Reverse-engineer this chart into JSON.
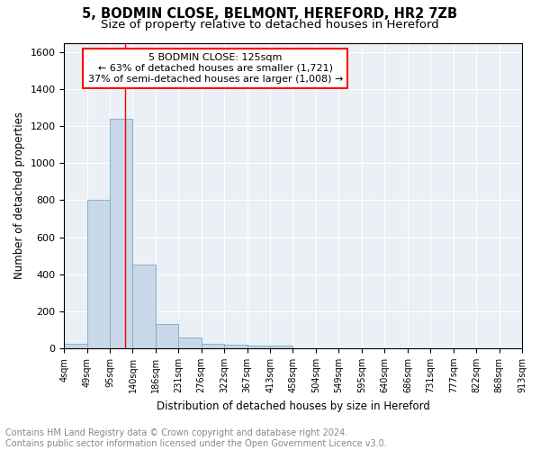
{
  "title": "5, BODMIN CLOSE, BELMONT, HEREFORD, HR2 7ZB",
  "subtitle": "Size of property relative to detached houses in Hereford",
  "xlabel": "Distribution of detached houses by size in Hereford",
  "ylabel": "Number of detached properties",
  "bar_color": "#c8d8e8",
  "bar_edge_color": "#7aaabb",
  "bg_color": "#eaf0f6",
  "grid_color": "white",
  "red_line_x": 125,
  "annotation_line1": "5 BODMIN CLOSE: 125sqm",
  "annotation_line2": "← 63% of detached houses are smaller (1,721)",
  "annotation_line3": "37% of semi-detached houses are larger (1,008) →",
  "annotation_box_color": "white",
  "annotation_box_edge": "red",
  "bins_left_edges": [
    4,
    49,
    95,
    140,
    186,
    231,
    276,
    322,
    367,
    413,
    458,
    504,
    549,
    595,
    640,
    686,
    731,
    777,
    822,
    868
  ],
  "bin_width": 45,
  "bar_heights": [
    25,
    800,
    1240,
    450,
    130,
    60,
    25,
    18,
    15,
    15,
    0,
    0,
    0,
    0,
    0,
    0,
    0,
    0,
    0,
    0
  ],
  "xtick_labels": [
    "4sqm",
    "49sqm",
    "95sqm",
    "140sqm",
    "186sqm",
    "231sqm",
    "276sqm",
    "322sqm",
    "367sqm",
    "413sqm",
    "458sqm",
    "504sqm",
    "549sqm",
    "595sqm",
    "640sqm",
    "686sqm",
    "731sqm",
    "777sqm",
    "822sqm",
    "868sqm",
    "913sqm"
  ],
  "ylim": [
    0,
    1650
  ],
  "xlim": [
    4,
    913
  ],
  "yticks": [
    0,
    200,
    400,
    600,
    800,
    1000,
    1200,
    1400,
    1600
  ],
  "footnote": "Contains HM Land Registry data © Crown copyright and database right 2024.\nContains public sector information licensed under the Open Government Licence v3.0.",
  "title_fontsize": 10.5,
  "subtitle_fontsize": 9.5,
  "annotation_fontsize": 8,
  "footnote_fontsize": 7,
  "xlabel_fontsize": 8.5,
  "ylabel_fontsize": 8.5,
  "tick_fontsize": 7,
  "ytick_fontsize": 8
}
